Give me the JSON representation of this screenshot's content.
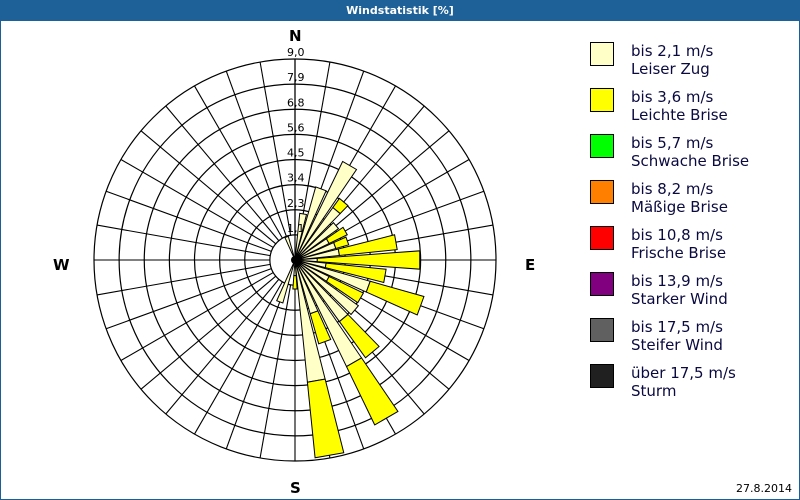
{
  "window": {
    "title": "Windstatistik [%]",
    "date": "27.8.2014"
  },
  "compass": {
    "n": "N",
    "e": "E",
    "s": "S",
    "w": "W"
  },
  "legend": [
    {
      "range": "bis 2,1 m/s",
      "name": "Leiser Zug",
      "color": "#ffffc8"
    },
    {
      "range": "bis 3,6 m/s",
      "name": "Leichte Brise",
      "color": "#ffff00"
    },
    {
      "range": "bis 5,7 m/s",
      "name": "Schwache Brise",
      "color": "#00ff00"
    },
    {
      "range": "bis 8,2 m/s",
      "name": "Mäßige Brise",
      "color": "#ff8000"
    },
    {
      "range": "bis 10,8 m/s",
      "name": "Frische Brise",
      "color": "#ff0000"
    },
    {
      "range": "bis 13,9 m/s",
      "name": "Starker Wind",
      "color": "#800080"
    },
    {
      "range": "bis 17,5 m/s",
      "name": "Steifer Wind",
      "color": "#606060"
    },
    {
      "range": "über 17,5 m/s",
      "name": "Sturm",
      "color": "#202020"
    }
  ],
  "chart_data": {
    "type": "wind-rose",
    "title": "Windstatistik [%]",
    "unit": "%",
    "ring_labels": [
      "1,1",
      "2,3",
      "3,4",
      "4,5",
      "5,6",
      "6,8",
      "7,9",
      "9,0"
    ],
    "rmax": 9.0,
    "directions_deg": [
      0,
      10,
      20,
      30,
      40,
      50,
      60,
      70,
      80,
      90,
      100,
      110,
      120,
      130,
      140,
      150,
      160,
      170,
      180,
      190,
      200,
      210,
      220,
      230,
      240,
      250,
      260,
      270,
      280,
      290,
      300,
      310,
      320,
      330,
      340,
      350
    ],
    "series": [
      {
        "name": "bis 2,1 m/s Leiser Zug",
        "color": "#ffffc8",
        "values": [
          0,
          2.1,
          3.4,
          4.9,
          2.9,
          2.4,
          1.7,
          1.9,
          2.0,
          1.0,
          1.4,
          3.5,
          1.7,
          3.5,
          3.4,
          5.3,
          2.5,
          5.5,
          0.7,
          0,
          2.0,
          0,
          0,
          0,
          0,
          0,
          0,
          0,
          0,
          0,
          0,
          0,
          0,
          0,
          1.1,
          0
        ]
      },
      {
        "name": "bis 3,6 m/s Leichte Brise",
        "color": "#ffff00",
        "values": [
          0,
          0,
          0,
          0,
          0.5,
          0,
          0.9,
          0.6,
          2.6,
          4.6,
          2.7,
          2.5,
          1.7,
          0,
          2.0,
          2.9,
          1.4,
          3.4,
          0.6,
          0,
          0,
          0,
          0,
          0,
          0,
          0,
          0,
          0,
          0,
          0,
          0,
          0,
          0,
          0,
          0,
          0
        ]
      },
      {
        "name": "bis 5,7 m/s Schwache Brise",
        "color": "#00ff00",
        "values": [
          0,
          0,
          0,
          0,
          0,
          0,
          0,
          0,
          0,
          0,
          0,
          0,
          0,
          0,
          0,
          0,
          0,
          0,
          0,
          0,
          0,
          0,
          0,
          0,
          0,
          0,
          0,
          0,
          0,
          0,
          0,
          0,
          0,
          0,
          0,
          0
        ]
      },
      {
        "name": "bis 8,2 m/s Mäßige Brise",
        "color": "#ff8000",
        "values": [
          0,
          0,
          0,
          0,
          0,
          0,
          0,
          0,
          0,
          0,
          0,
          0,
          0,
          0,
          0,
          0,
          0,
          0,
          0,
          0,
          0,
          0,
          0,
          0,
          0,
          0,
          0,
          0,
          0,
          0,
          0,
          0,
          0,
          0,
          0,
          0
        ]
      },
      {
        "name": "bis 10,8 m/s Frische Brise",
        "color": "#ff0000",
        "values": [
          0,
          0,
          0,
          0,
          0,
          0,
          0,
          0,
          0,
          0,
          0,
          0,
          0,
          0,
          0,
          0,
          0,
          0,
          0,
          0,
          0,
          0,
          0,
          0,
          0,
          0,
          0,
          0,
          0,
          0,
          0,
          0,
          0,
          0,
          0,
          0
        ]
      },
      {
        "name": "bis 13,9 m/s Starker Wind",
        "color": "#800080",
        "values": [
          0,
          0,
          0,
          0,
          0,
          0,
          0,
          0,
          0,
          0,
          0,
          0,
          0,
          0,
          0,
          0,
          0,
          0,
          0,
          0,
          0,
          0,
          0,
          0,
          0,
          0,
          0,
          0,
          0,
          0,
          0,
          0,
          0,
          0,
          0,
          0
        ]
      },
      {
        "name": "bis 17,5 m/s Steifer Wind",
        "color": "#606060",
        "values": [
          0,
          0,
          0,
          0,
          0,
          0,
          0,
          0,
          0,
          0,
          0,
          0,
          0,
          0,
          0,
          0,
          0,
          0,
          0,
          0,
          0,
          0,
          0,
          0,
          0,
          0,
          0,
          0,
          0,
          0,
          0,
          0,
          0,
          0,
          0,
          0
        ]
      },
      {
        "name": "über 17,5 m/s Sturm",
        "color": "#202020",
        "values": [
          0,
          0,
          0,
          0,
          0,
          0,
          0,
          0,
          0,
          0,
          0,
          0,
          0,
          0,
          0,
          0,
          0,
          0,
          0,
          0,
          0,
          0,
          0,
          0,
          0,
          0,
          0,
          0,
          0,
          0,
          0,
          0,
          0,
          0,
          0,
          0
        ]
      }
    ],
    "legend_position": "right"
  }
}
